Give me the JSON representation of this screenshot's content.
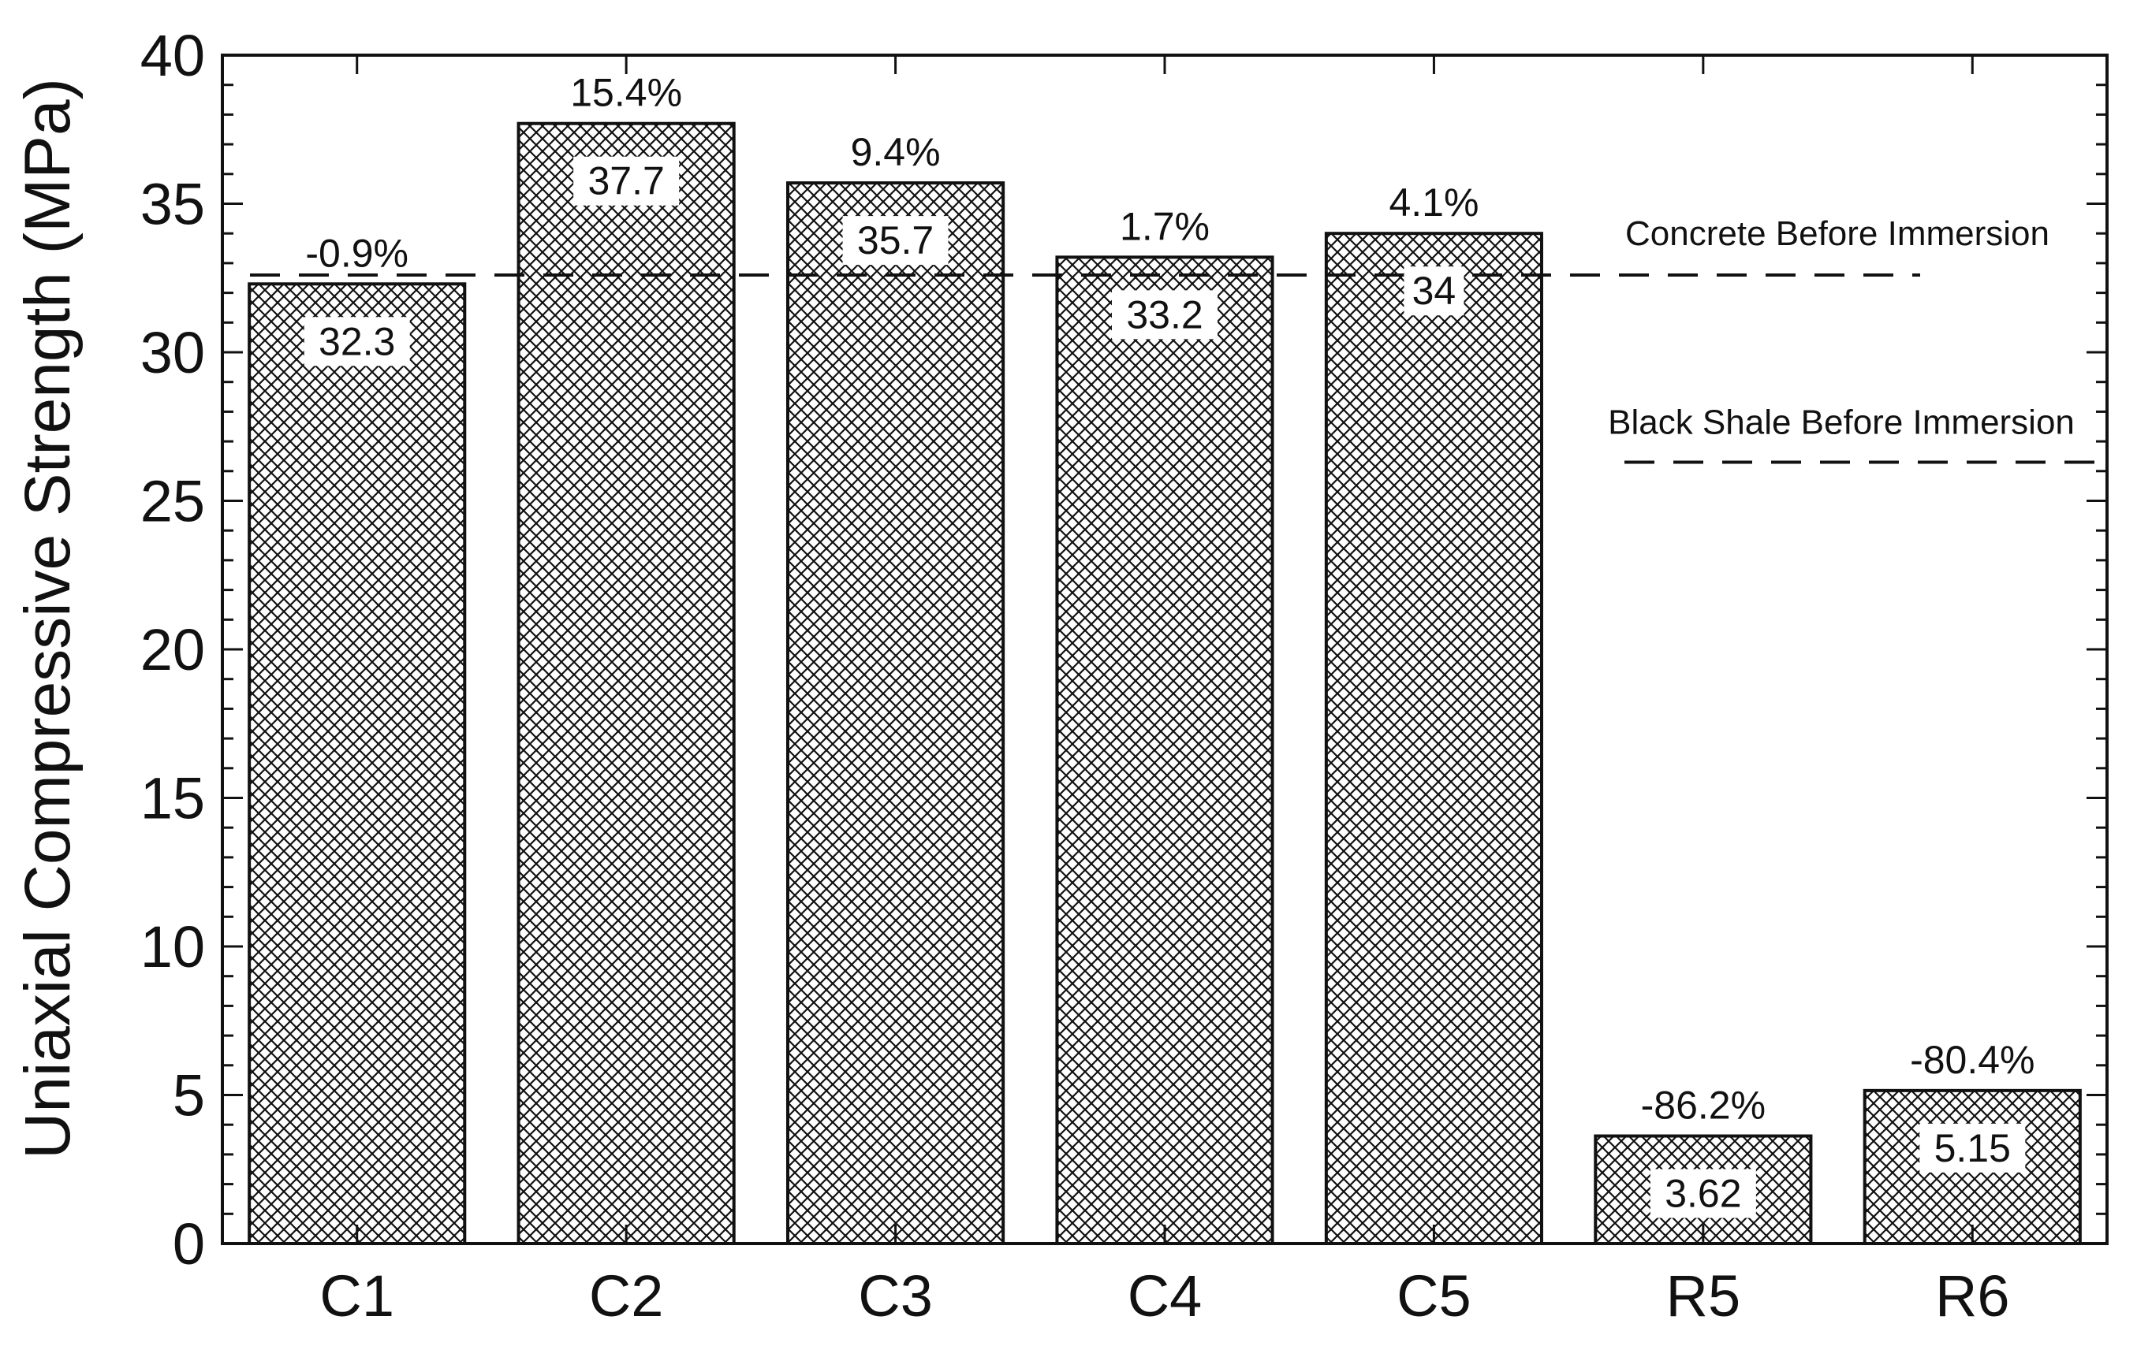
{
  "chart_data": {
    "type": "bar",
    "title": "",
    "xlabel": "",
    "ylabel": "Uniaxial Compressive Strength (MPa)",
    "ylim": [
      0,
      40
    ],
    "yticks": [
      0,
      5,
      10,
      15,
      20,
      25,
      30,
      35,
      40
    ],
    "yticks_labels": [
      "0",
      "5",
      "10",
      "15",
      "20",
      "25",
      "30",
      "35",
      "40"
    ],
    "categories": [
      "C1",
      "C2",
      "C3",
      "C4",
      "C5",
      "R5",
      "R6"
    ],
    "values": [
      32.3,
      37.7,
      35.7,
      33.2,
      34,
      3.62,
      5.15
    ],
    "value_labels": [
      "32.3",
      "37.7",
      "35.7",
      "33.2",
      "34",
      "3.62",
      "5.15"
    ],
    "percent_labels": [
      "-0.9%",
      "15.4%",
      "9.4%",
      "1.7%",
      "4.1%",
      "-86.2%",
      "-80.4%"
    ],
    "reference_lines": [
      {
        "label": "Concrete Before Immersion",
        "value": 32.6,
        "style": "dashed"
      },
      {
        "label": "Black Shale Before Immersion",
        "value": 26.3,
        "style": "dashed"
      }
    ],
    "bar_fill": "crosshatch",
    "grid": false,
    "legend": "none",
    "colors": {
      "bar_edge": "#111111",
      "hatch": "#111111",
      "background": "#ffffff"
    }
  }
}
